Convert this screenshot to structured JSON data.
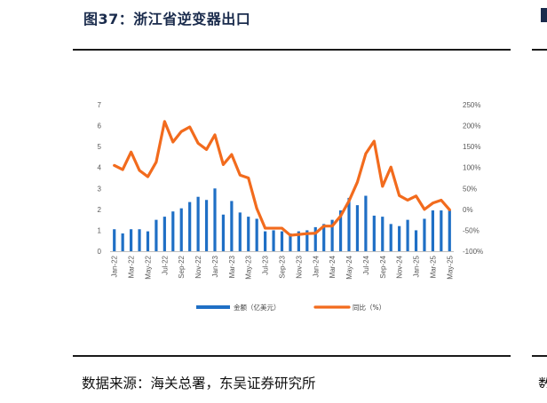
{
  "figure": {
    "title": "图37：浙江省逆变器出口",
    "source": "数据来源：海关总署，东吴证券研究所",
    "edge_title_char": "图",
    "edge_source_char": "数"
  },
  "colors": {
    "bar": "#1f6fc5",
    "line": "#f26b1d",
    "title": "#1a2b4c",
    "axis_text": "#595959"
  },
  "chart_data": {
    "type": "bar+line",
    "categories": [
      "Jan-22",
      "Feb-22",
      "Mar-22",
      "Apr-22",
      "May-22",
      "Jun-22",
      "Jul-22",
      "Aug-22",
      "Sep-22",
      "Oct-22",
      "Nov-22",
      "Dec-22",
      "Jan-23",
      "Feb-23",
      "Mar-23",
      "Apr-23",
      "May-23",
      "Jun-23",
      "Jul-23",
      "Aug-23",
      "Sep-23",
      "Oct-23",
      "Nov-23",
      "Dec-23",
      "Jan-24",
      "Feb-24",
      "Mar-24",
      "Apr-24",
      "May-24",
      "Jun-24",
      "Jul-24",
      "Aug-24",
      "Sep-24",
      "Oct-24",
      "Nov-24",
      "Dec-24",
      "Jan-25",
      "Feb-25",
      "Mar-25",
      "Apr-25",
      "May-25"
    ],
    "x_tick_labels": [
      "Jan-22",
      "Mar-22",
      "May-22",
      "Jul-22",
      "Sep-22",
      "Nov-22",
      "Jan-23",
      "Mar-23",
      "May-23",
      "Jul-23",
      "Sep-23",
      "Nov-23",
      "Jan-24",
      "Mar-24",
      "May-24",
      "Jul-24",
      "Sep-24",
      "Nov-24",
      "Jan-25",
      "Mar-25",
      "May-25"
    ],
    "series": [
      {
        "name": "金额（亿美元）",
        "type": "bar",
        "axis": "left",
        "values": [
          1.05,
          0.85,
          1.05,
          1.05,
          0.95,
          1.5,
          1.65,
          1.9,
          2.05,
          2.35,
          2.6,
          2.45,
          3.0,
          1.75,
          2.4,
          1.85,
          1.65,
          1.55,
          0.95,
          1.0,
          0.95,
          0.85,
          0.95,
          1.0,
          1.15,
          1.3,
          1.5,
          1.95,
          2.55,
          2.2,
          2.65,
          1.7,
          1.65,
          1.3,
          1.2,
          1.5,
          1.0,
          1.55,
          1.95,
          1.95,
          1.95
        ]
      },
      {
        "name": "同比（%）",
        "type": "line",
        "axis": "right",
        "values": [
          105,
          95,
          137,
          93,
          78,
          113,
          210,
          161,
          186,
          197,
          158,
          143,
          178,
          107,
          131,
          82,
          75,
          2,
          -45,
          -45,
          -45,
          -62,
          -60,
          -58,
          -57,
          -40,
          -40,
          -16,
          20,
          65,
          133,
          163,
          55,
          101,
          33,
          22,
          32,
          0,
          15,
          22,
          -1
        ]
      }
    ],
    "y_left": {
      "min": 0,
      "max": 7,
      "ticks": [
        "0",
        "1",
        "2",
        "3",
        "4",
        "5",
        "6",
        "7"
      ]
    },
    "y_right": {
      "min": -100,
      "max": 250,
      "ticks": [
        "-100%",
        "-50%",
        "0%",
        "50%",
        "100%",
        "150%",
        "200%",
        "250%"
      ]
    },
    "legend": {
      "position": "bottom",
      "entries": [
        "金额（亿美元）",
        "同比（%）"
      ]
    },
    "grid": false
  }
}
